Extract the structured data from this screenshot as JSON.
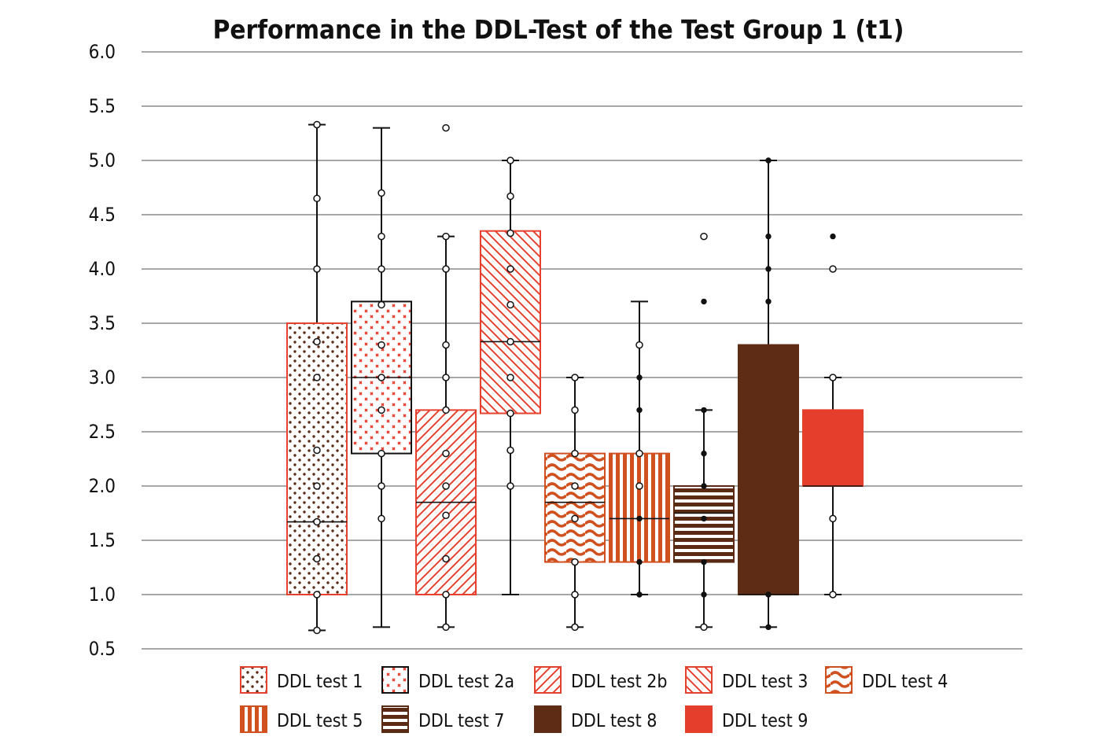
{
  "chart_data": {
    "type": "box",
    "title": "Performance in the DDL-Test of the Test Group 1 (t1)",
    "xlabel": "",
    "ylabel": "",
    "ylim": [
      0.5,
      6.0
    ],
    "yticks": [
      "6.0",
      "5.5",
      "5.0",
      "4.5",
      "4.0",
      "3.5",
      "3.0",
      "2.5",
      "2.0",
      "1.5",
      "1.0",
      "0.5"
    ],
    "grid": true,
    "legend_position": "bottom",
    "series": [
      {
        "name": "DDL test 1",
        "pattern": "dots",
        "color": "#5a2a14",
        "border": "#e8402f",
        "q1": 1.0,
        "median": 1.67,
        "q3": 3.5,
        "whisker_low": 0.67,
        "whisker_high": 5.33,
        "points_open": [
          5.33,
          4.65,
          4.0,
          3.33,
          3.0,
          2.33,
          2.0,
          1.67,
          1.33,
          1.0,
          0.67
        ],
        "points_filled": []
      },
      {
        "name": "DDL test 2a",
        "pattern": "cross",
        "color": "#e8402f",
        "border": "#111111",
        "q1": 2.3,
        "median": 3.0,
        "q3": 3.7,
        "whisker_low": 0.7,
        "whisker_high": 5.3,
        "points_open": [
          4.7,
          4.3,
          4.0,
          3.67,
          3.3,
          3.0,
          2.7,
          2.3,
          2.0,
          1.7
        ],
        "points_filled": []
      },
      {
        "name": "DDL test 2b",
        "pattern": "diag-fwd",
        "color": "#e8402f",
        "border": "#e8402f",
        "q1": 1.0,
        "median": 1.85,
        "q3": 2.7,
        "whisker_low": 0.7,
        "whisker_high": 4.3,
        "points_open": [
          5.3,
          4.3,
          4.0,
          3.3,
          3.0,
          2.7,
          2.3,
          2.0,
          1.73,
          1.33,
          1.0,
          0.7
        ],
        "points_filled": []
      },
      {
        "name": "DDL test 3",
        "pattern": "diag-back",
        "color": "#e8402f",
        "border": "#e8402f",
        "q1": 2.67,
        "median": 3.33,
        "q3": 4.35,
        "whisker_low": 1.0,
        "whisker_high": 5.0,
        "points_open": [
          5.0,
          4.67,
          4.33,
          4.0,
          3.67,
          3.33,
          3.0,
          2.67,
          2.33,
          2.0
        ],
        "points_filled": []
      },
      {
        "name": "DDL test 4",
        "pattern": "wave",
        "color": "#d05020",
        "border": "#d05020",
        "q1": 1.3,
        "median": 1.85,
        "q3": 2.3,
        "whisker_low": 0.7,
        "whisker_high": 3.0,
        "points_open": [
          3.0,
          2.7,
          2.3,
          2.0,
          1.7,
          1.3,
          1.0,
          0.7
        ],
        "points_filled": []
      },
      {
        "name": "DDL test 5",
        "pattern": "vertical",
        "color": "#d05020",
        "border": "#d05020",
        "q1": 1.3,
        "median": 1.7,
        "q3": 2.3,
        "whisker_low": 1.0,
        "whisker_high": 3.7,
        "points_open": [
          3.3,
          2.3,
          2.0
        ],
        "points_filled": [
          3.0,
          2.7,
          1.7,
          1.3,
          1.0
        ]
      },
      {
        "name": "DDL test 7",
        "pattern": "horizontal",
        "color": "#5a2a14",
        "border": "#5a2a14",
        "q1": 1.3,
        "median": 1.75,
        "q3": 2.0,
        "whisker_low": 0.7,
        "whisker_high": 2.7,
        "points_open": [
          4.3,
          0.7
        ],
        "points_filled": [
          3.7,
          2.7,
          2.3,
          2.0,
          1.7,
          1.3,
          1.0
        ]
      },
      {
        "name": "DDL test 8",
        "pattern": "solid",
        "color": "#5e2c14",
        "border": "#5e2c14",
        "q1": 1.0,
        "median": 1.0,
        "q3": 3.3,
        "whisker_low": 0.7,
        "whisker_high": 5.0,
        "points_open": [],
        "points_filled": [
          5.0,
          4.3,
          4.0,
          3.7,
          1.0,
          0.7
        ]
      },
      {
        "name": "DDL test 9",
        "pattern": "solid",
        "color": "#e53e2d",
        "border": "#e53e2d",
        "q1": 2.0,
        "median": 2.0,
        "q3": 2.7,
        "whisker_low": 1.0,
        "whisker_high": 3.0,
        "points_open": [
          4.0,
          3.0,
          1.7,
          1.0
        ],
        "points_filled": [
          4.3
        ]
      }
    ]
  }
}
